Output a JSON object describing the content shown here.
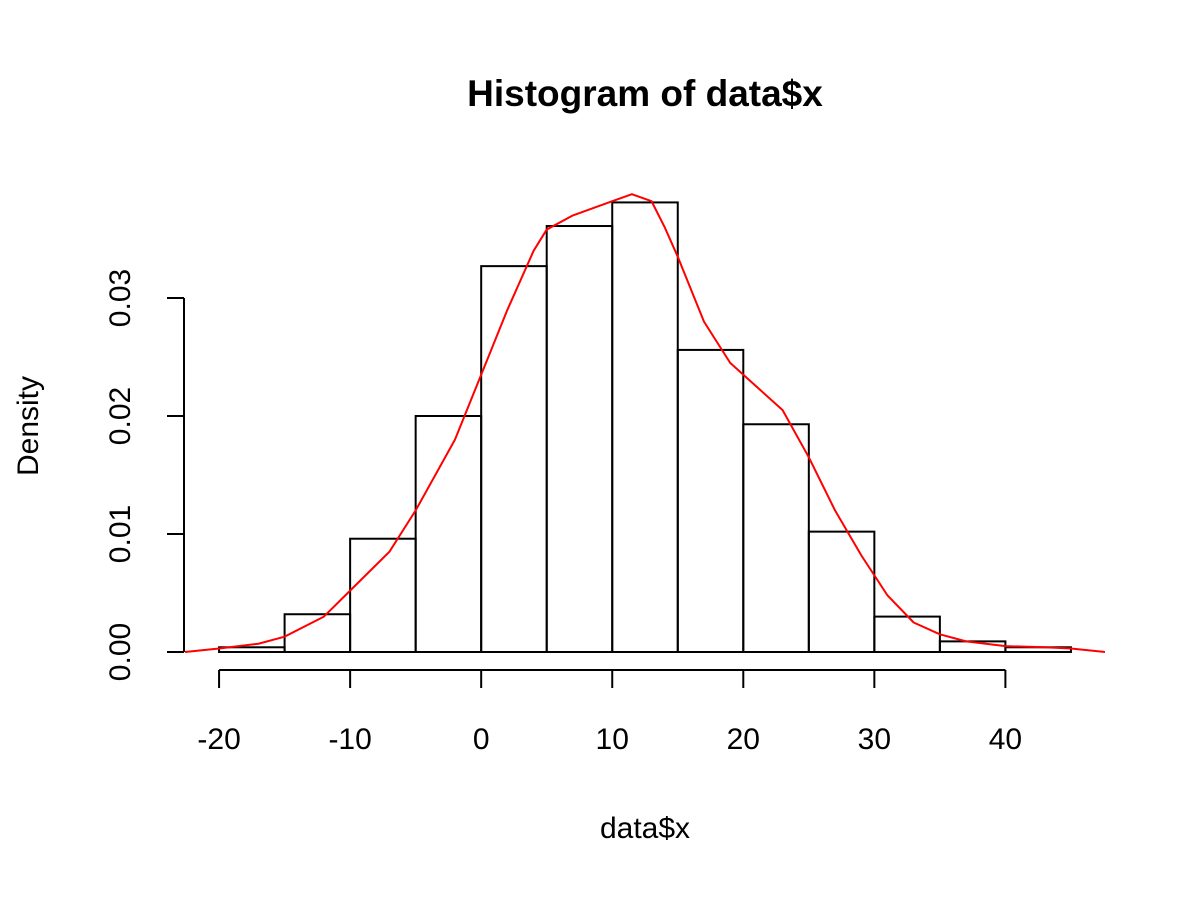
{
  "chart_data": {
    "type": "histogram",
    "title": "Histogram of data$x",
    "xlabel": "data$x",
    "ylabel": "Density",
    "bins": [
      -20,
      -15,
      -10,
      -5,
      0,
      5,
      10,
      15,
      20,
      25,
      30,
      35,
      40,
      45
    ],
    "values": [
      0.0004,
      0.0032,
      0.0096,
      0.02,
      0.0327,
      0.0361,
      0.0381,
      0.0256,
      0.0193,
      0.0102,
      0.003,
      0.0009,
      0.0004
    ],
    "color": "#000000",
    "density": {
      "color": "#ff0000",
      "x": [
        -22.6,
        -20,
        -17,
        -15,
        -12,
        -10,
        -7,
        -5,
        -2,
        0,
        2,
        4,
        5,
        7,
        10,
        11.5,
        13,
        14,
        15,
        17,
        19,
        21,
        23,
        25,
        27,
        29,
        31,
        33,
        35,
        37,
        40,
        43,
        45,
        47.6
      ],
      "values": [
        0,
        0.0003,
        0.0007,
        0.0013,
        0.003,
        0.0052,
        0.0085,
        0.012,
        0.018,
        0.0235,
        0.029,
        0.034,
        0.0358,
        0.037,
        0.0382,
        0.0388,
        0.0382,
        0.036,
        0.0335,
        0.028,
        0.0245,
        0.0225,
        0.0205,
        0.0165,
        0.012,
        0.0082,
        0.0048,
        0.0025,
        0.0015,
        0.0009,
        0.0005,
        0.0004,
        0.0003,
        0
      ]
    },
    "xlim": [
      -22.6,
      47.6
    ],
    "ylim": [
      0,
      0.04
    ],
    "xticks": [
      -20,
      -10,
      0,
      10,
      20,
      30,
      40
    ],
    "yticks": [
      {
        "value": 0,
        "label": "0.00"
      },
      {
        "value": 0.01,
        "label": "0.01"
      },
      {
        "value": 0.02,
        "label": "0.02"
      },
      {
        "value": 0.03,
        "label": "0.03"
      }
    ],
    "grid": false
  }
}
